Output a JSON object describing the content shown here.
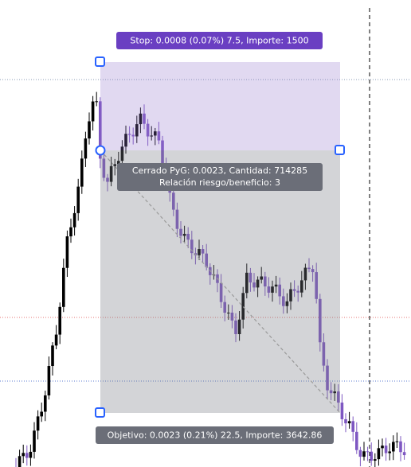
{
  "position_tool": {
    "stop_label": "Stop: 0.0008 (0.07%) 7.5, Importe: 1500",
    "result_label": [
      "Cerrado PyG: 0.0023, Cantidad: 714285",
      "Relación riesgo/beneficio: 3"
    ],
    "target_label": "Objetivo: 0.0023 (0.21%) 22.5, Importe: 3642.86"
  }
}
